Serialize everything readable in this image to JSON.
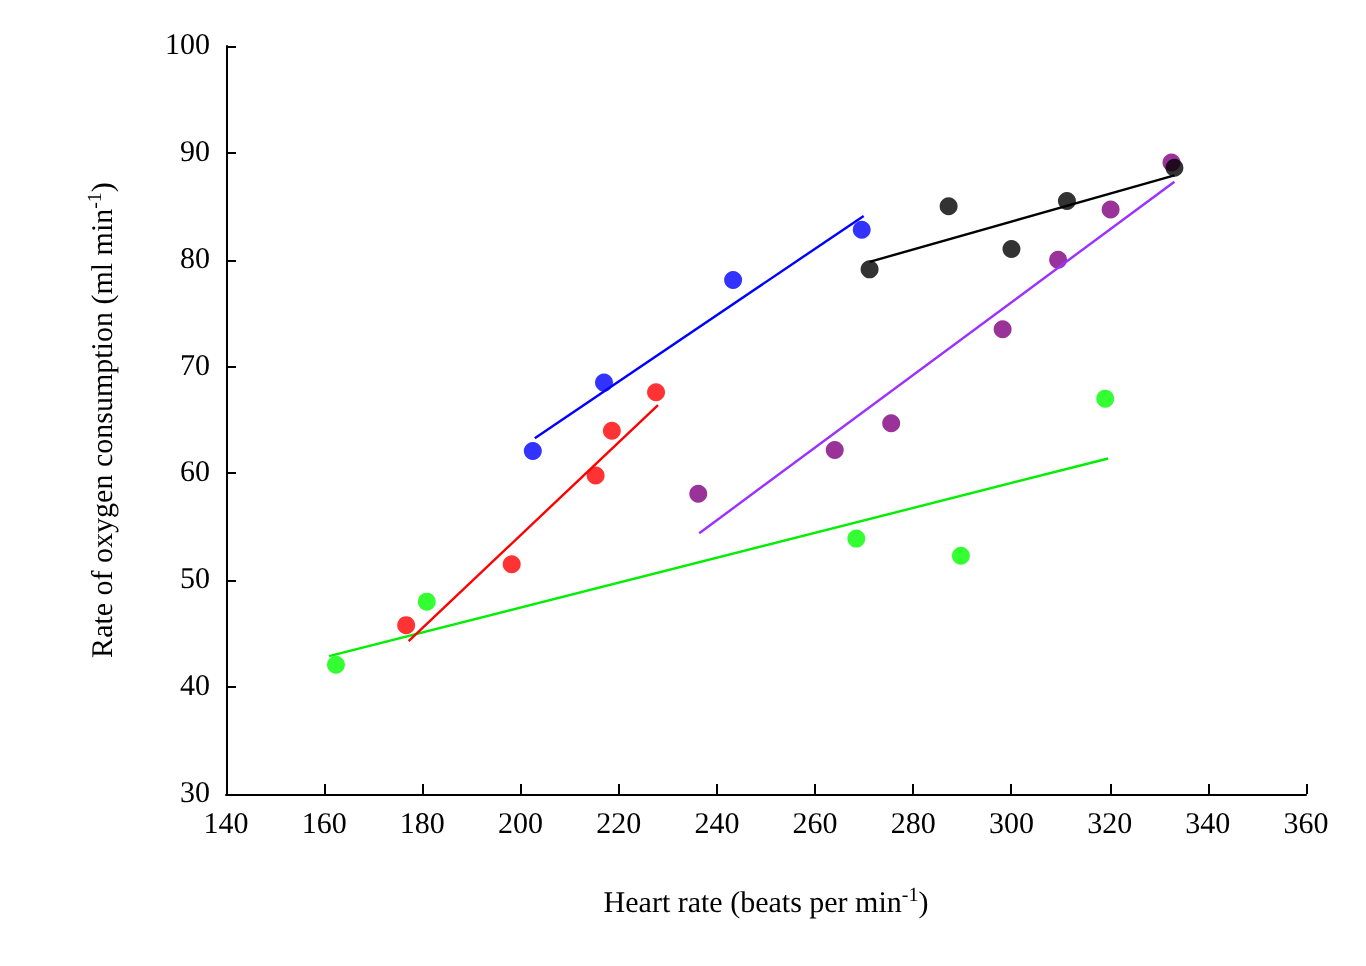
{
  "chart_data": {
    "type": "scatter",
    "xlabel": "Heart rate (beats per min$^{-1}$)",
    "ylabel": "Rate of oxygen consumption (ml min$^{-1}$)",
    "xlim": [
      140,
      360
    ],
    "xticks": [
      140,
      160,
      180,
      200,
      220,
      240,
      260,
      280,
      300,
      320,
      340,
      360
    ],
    "ylim": [
      30,
      100
    ],
    "yticks": [
      30,
      40,
      50,
      60,
      70,
      80,
      90,
      100
    ],
    "grid": false,
    "series": [
      {
        "marker": "circle",
        "color": "#00ff00",
        "x": [
          162.4,
          180.9,
          268.4,
          289.7,
          319.1
        ],
        "values": [
          42.1,
          48.0,
          53.9,
          52.3,
          67.0
        ]
      },
      {
        "type": "line",
        "marker": "none",
        "color": "#00ee00",
        "x": [
          161.0,
          319.7
        ],
        "values": [
          42.9,
          61.4
        ]
      },
      {
        "marker": "circle",
        "color": "#ff0000",
        "x": [
          176.7,
          198.2,
          215.3,
          218.6,
          227.6
        ],
        "values": [
          45.8,
          51.5,
          59.8,
          64.0,
          67.6
        ]
      },
      {
        "type": "line",
        "marker": "none",
        "color": "#ff0000",
        "x": [
          177.2,
          228.0
        ],
        "values": [
          44.3,
          66.4
        ]
      },
      {
        "marker": "circle",
        "color": "#0000ff",
        "x": [
          202.5,
          217.0,
          243.3,
          269.5
        ],
        "values": [
          62.1,
          68.5,
          78.1,
          82.8
        ]
      },
      {
        "type": "line",
        "marker": "none",
        "color": "#0000ff",
        "x": [
          202.9,
          269.9
        ],
        "values": [
          63.3,
          84.1
        ]
      },
      {
        "marker": "circle",
        "color": "#800080",
        "x": [
          236.2,
          264.0,
          275.5,
          298.2,
          309.5,
          320.2,
          332.6
        ],
        "values": [
          58.1,
          62.2,
          64.7,
          73.5,
          80.0,
          84.7,
          89.1
        ]
      },
      {
        "type": "line",
        "marker": "none",
        "color": "#9b30ff",
        "x": [
          236.4,
          333.2
        ],
        "values": [
          54.4,
          87.3
        ]
      },
      {
        "marker": "circle",
        "color": "#000000",
        "x": [
          271.1,
          287.2,
          300.0,
          311.3,
          333.2
        ],
        "values": [
          79.1,
          85.0,
          81.0,
          85.5,
          88.6
        ]
      },
      {
        "type": "line",
        "marker": "none",
        "color": "#000000",
        "x": [
          271.1,
          333.2
        ],
        "values": [
          79.8,
          87.9
        ]
      }
    ]
  }
}
